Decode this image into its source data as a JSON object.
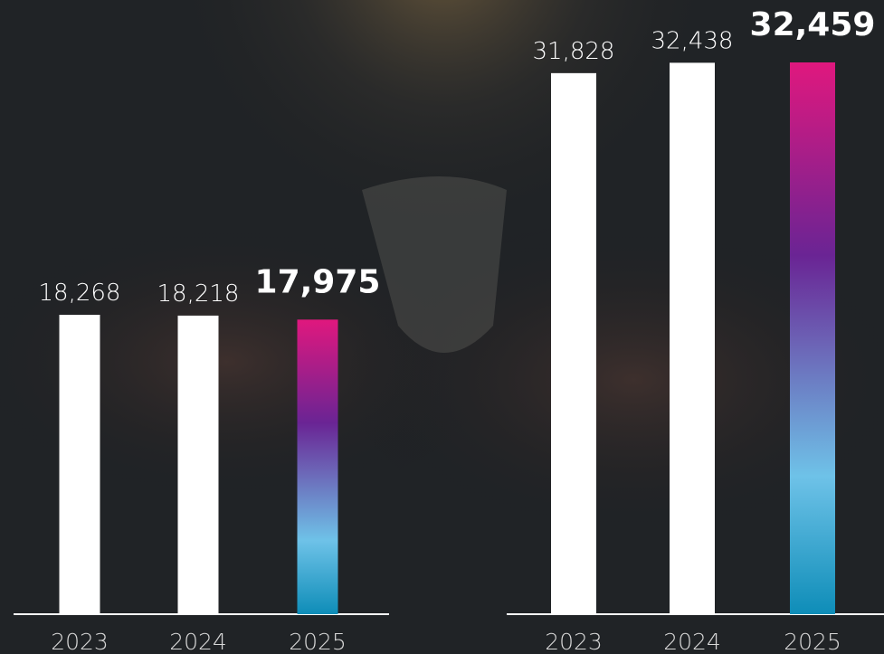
{
  "chart_data": [
    {
      "type": "bar",
      "categories": [
        "2023",
        "2024",
        "2025"
      ],
      "values": [
        18268,
        18218,
        17975
      ],
      "value_labels": [
        "18,268",
        "18,218",
        "17,975"
      ],
      "color": "#ffffff"
    },
    {
      "type": "bar",
      "categories": [
        "2023",
        "2024",
        "2025"
      ],
      "values": [
        31828,
        32438,
        32459
      ],
      "value_labels": [
        "31,828",
        "32,438",
        "32,459"
      ],
      "color": "#ffffff"
    }
  ]
}
